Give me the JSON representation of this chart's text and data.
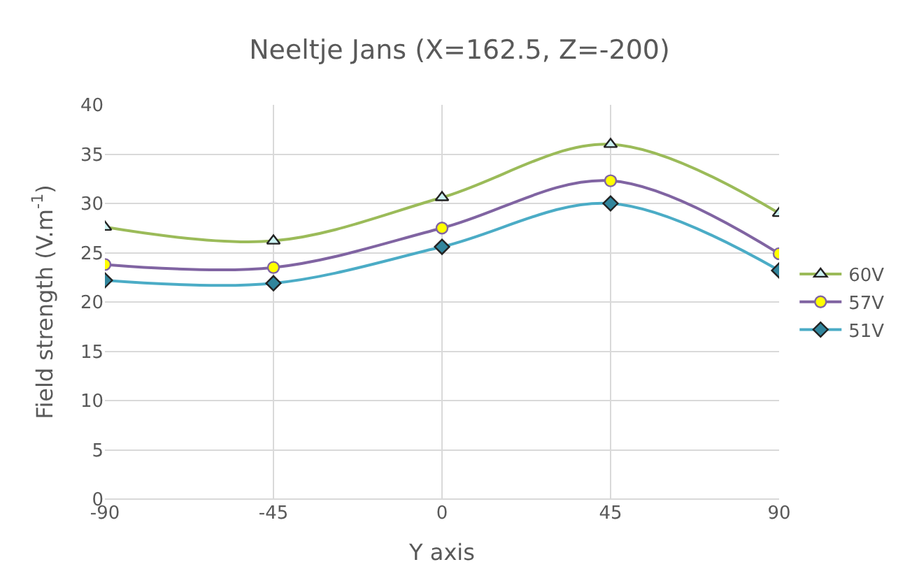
{
  "chart_data": {
    "type": "line",
    "title": "Neeltje Jans (X=162.5, Z=-200)",
    "xlabel": "Y axis",
    "ylabel": "Field strength (V.m$^{-1}$)",
    "x": [
      -90,
      -45,
      0,
      45,
      90
    ],
    "series": [
      {
        "name": "60V",
        "color": "#9bbb59",
        "marker": "triangle",
        "values": [
          27.6,
          26.2,
          30.6,
          36.0,
          29.0
        ]
      },
      {
        "name": "57V",
        "color": "#8064a2",
        "marker": "circle",
        "values": [
          23.8,
          23.5,
          27.5,
          32.3,
          24.9
        ]
      },
      {
        "name": "51V",
        "color": "#4bacc6",
        "marker": "diamond",
        "values": [
          22.2,
          21.9,
          25.6,
          30.0,
          23.2
        ]
      }
    ],
    "xlim": [
      -90,
      90
    ],
    "xticks": [
      -90,
      -45,
      0,
      45,
      90
    ],
    "ylim": [
      0,
      40
    ],
    "yticks": [
      0,
      5,
      10,
      15,
      20,
      25,
      30,
      35,
      40
    ],
    "grid": true,
    "legend": "right"
  }
}
